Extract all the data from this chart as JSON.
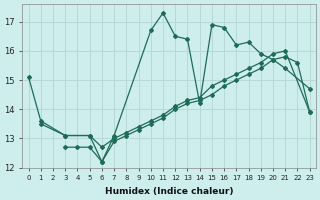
{
  "xlabel": "Humidex (Indice chaleur)",
  "background_color": "#ceeeed",
  "grid_color": "#b8d8d8",
  "line_color": "#1e6b5a",
  "line1_x": [
    0,
    1,
    3,
    5,
    6,
    7,
    10,
    11,
    12,
    13,
    14,
    15,
    16,
    17,
    18,
    19,
    20,
    21,
    23
  ],
  "line1_y": [
    15.1,
    13.6,
    13.1,
    13.1,
    12.2,
    13.1,
    16.7,
    17.3,
    16.5,
    16.4,
    14.2,
    16.9,
    16.8,
    16.2,
    16.3,
    15.9,
    15.7,
    15.4,
    14.7
  ],
  "line2_x": [
    1,
    3,
    5,
    6,
    7,
    8,
    9,
    10,
    11,
    12,
    13,
    14,
    15,
    16,
    17,
    18,
    19,
    20,
    21,
    23
  ],
  "line2_y": [
    13.5,
    13.1,
    13.1,
    12.7,
    13.0,
    13.2,
    13.4,
    13.6,
    13.8,
    14.1,
    14.3,
    14.4,
    14.8,
    15.0,
    15.2,
    15.4,
    15.6,
    15.9,
    16.0,
    13.9
  ],
  "line3_x": [
    3,
    4,
    5,
    6,
    7,
    8,
    9,
    10,
    11,
    12,
    13,
    14,
    15,
    16,
    17,
    18,
    19,
    20,
    21,
    22,
    23
  ],
  "line3_y": [
    12.7,
    12.7,
    12.7,
    12.2,
    12.9,
    13.1,
    13.3,
    13.5,
    13.7,
    14.0,
    14.2,
    14.3,
    14.5,
    14.8,
    15.0,
    15.2,
    15.4,
    15.7,
    15.8,
    15.6,
    13.9
  ],
  "ylim": [
    12,
    17.6
  ],
  "xlim": [
    -0.5,
    23.5
  ],
  "yticks": [
    12,
    13,
    14,
    15,
    16,
    17
  ],
  "xticks": [
    0,
    1,
    2,
    3,
    4,
    5,
    6,
    7,
    8,
    9,
    10,
    11,
    12,
    13,
    14,
    15,
    16,
    17,
    18,
    19,
    20,
    21,
    22,
    23
  ]
}
